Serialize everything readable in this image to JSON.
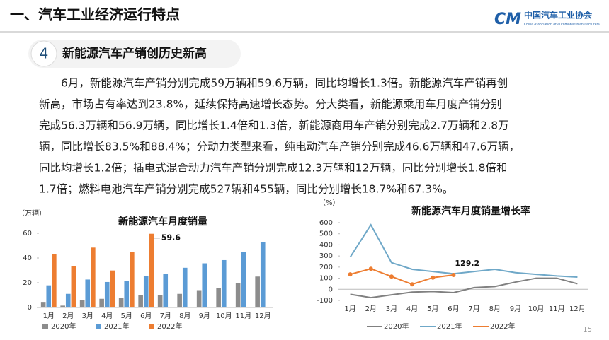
{
  "header": {
    "title": "一、汽车工业经济运行特点",
    "logo_cn": "中国汽车工业协会",
    "logo_en": "China Association of Automobile Manufacturers"
  },
  "section": {
    "number": "4",
    "title": "新能源汽车产销创历史新高"
  },
  "body": {
    "lines": [
      "6月，新能源汽车产销分别完成59万辆和59.6万辆，同比均增长1.3倍。新能源汽车产销再创",
      "新高，市场占有率达到23.8%，延续保持高速增长态势。分大类看，新能源乘用车月度产销分别",
      "完成56.3万辆和56.9万辆，同比增长1.4倍和1.3倍，新能源商用车产销分别完成2.7万辆和2.8万",
      "辆，同比增长83.5%和88.4%；分动力类型来看，纯电动汽车产销分别完成46.6万辆和47.6万辆，",
      "同比均增长1.2倍；插电式混合动力汽车产销分别完成12.3万辆和12万辆，同比分别增长1.8倍和",
      "1.7倍；燃料电池汽车产销分别完成527辆和455辆，同比分别增长18.7%和67.3%。"
    ]
  },
  "page_number": "15",
  "chart_data": [
    {
      "type": "bar",
      "title": "新能源汽车月度销量",
      "ylabel": "（万辆）",
      "categories": [
        "1月",
        "2月",
        "3月",
        "4月",
        "5月",
        "6月",
        "7月",
        "8月",
        "9月",
        "10月",
        "11月",
        "12月"
      ],
      "series": [
        {
          "name": "2020年",
          "color": "#8c8c8c",
          "values": [
            4.5,
            1.5,
            6,
            7,
            8,
            10,
            10,
            11,
            14,
            16,
            20,
            25
          ]
        },
        {
          "name": "2021年",
          "color": "#5b9bd5",
          "values": [
            17.9,
            11,
            22.6,
            20.6,
            21.7,
            25.6,
            27.1,
            32.1,
            35.7,
            38.3,
            45,
            53.1
          ]
        },
        {
          "name": "2022年",
          "color": "#ed7d31",
          "values": [
            43.1,
            33.4,
            48.4,
            29.9,
            44.7,
            59.6,
            null,
            null,
            null,
            null,
            null,
            null
          ]
        }
      ],
      "annotation": "59.6",
      "ylim": [
        0,
        60
      ],
      "yticks": [
        0,
        20,
        40,
        60
      ]
    },
    {
      "type": "line",
      "title": "新能源汽车月度销量增长率",
      "ylabel": "（%）",
      "categories": [
        "1月",
        "2月",
        "3月",
        "4月",
        "5月",
        "6月",
        "7月",
        "8月",
        "9月",
        "10月",
        "11月",
        "12月"
      ],
      "series": [
        {
          "name": "2020年",
          "color": "#808080",
          "values": [
            -45,
            -75,
            -50,
            -25,
            -20,
            -30,
            15,
            25,
            65,
            100,
            100,
            50
          ]
        },
        {
          "name": "2021年",
          "color": "#6fa8c8",
          "values": [
            290,
            580,
            240,
            180,
            160,
            140,
            160,
            180,
            150,
            135,
            120,
            110
          ]
        },
        {
          "name": "2022年",
          "color": "#ed7d31",
          "values": [
            135,
            185,
            115,
            45,
            105,
            129.2,
            null,
            null,
            null,
            null,
            null,
            null
          ]
        }
      ],
      "annotation": "129.2",
      "ylim": [
        -100,
        600
      ],
      "yticks": [
        -100,
        0,
        100,
        200,
        300,
        400,
        500,
        600
      ]
    }
  ]
}
